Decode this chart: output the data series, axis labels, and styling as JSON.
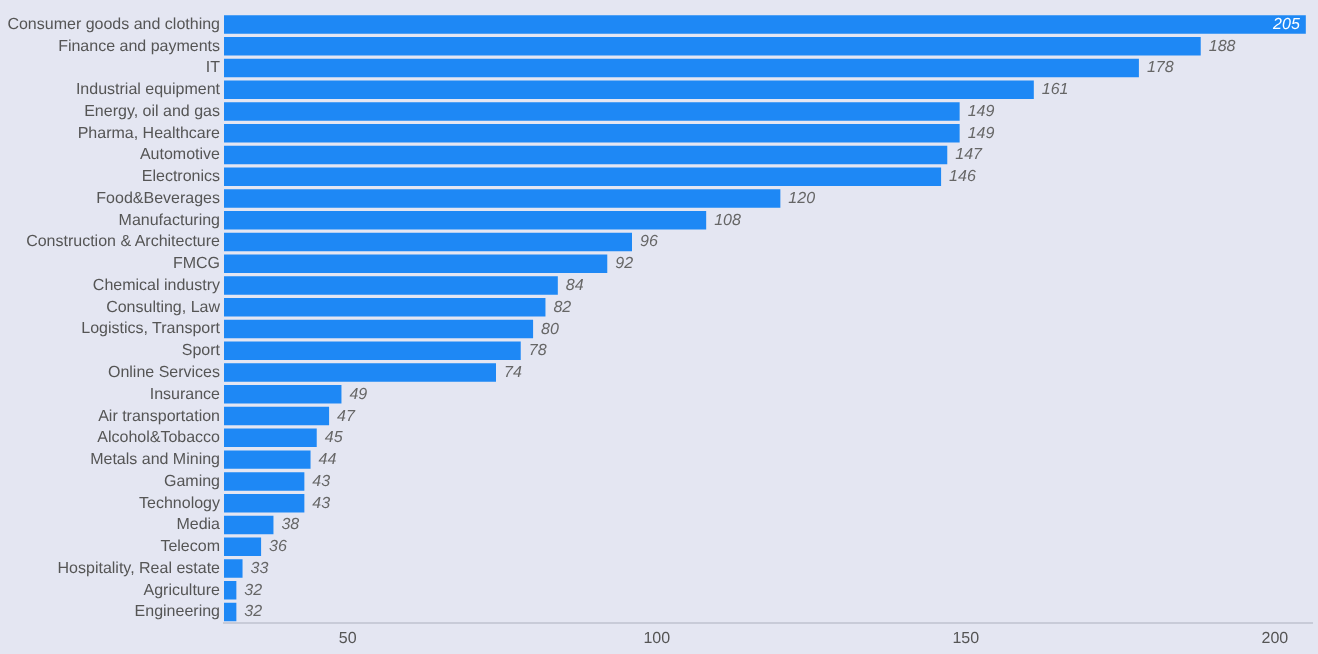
{
  "chart_data": {
    "type": "bar",
    "orientation": "horizontal",
    "categories": [
      "Consumer goods and clothing",
      "Finance and payments",
      "IT",
      "Industrial equipment",
      "Energy, oil and gas",
      "Pharma, Healthcare",
      "Automotive",
      "Electronics",
      "Food&Beverages",
      "Manufacturing",
      "Construction & Architecture",
      "FMCG",
      "Chemical industry",
      "Consulting, Law",
      "Logistics, Transport",
      "Sport",
      "Online Services",
      "Insurance",
      "Air transportation",
      "Alcohol&Tobacco",
      "Metals and Mining",
      "Gaming",
      "Technology",
      "Media",
      "Telecom",
      "Hospitality, Real estate",
      "Agriculture",
      "Engineering"
    ],
    "values": [
      205,
      188,
      178,
      161,
      149,
      149,
      147,
      146,
      120,
      108,
      96,
      92,
      84,
      82,
      80,
      78,
      74,
      49,
      47,
      45,
      44,
      43,
      43,
      38,
      36,
      33,
      32,
      32
    ],
    "color": "#1e88f5",
    "xlim": [
      30,
      206
    ],
    "xticks": [
      50,
      100,
      150,
      200
    ],
    "data_labels": true
  }
}
